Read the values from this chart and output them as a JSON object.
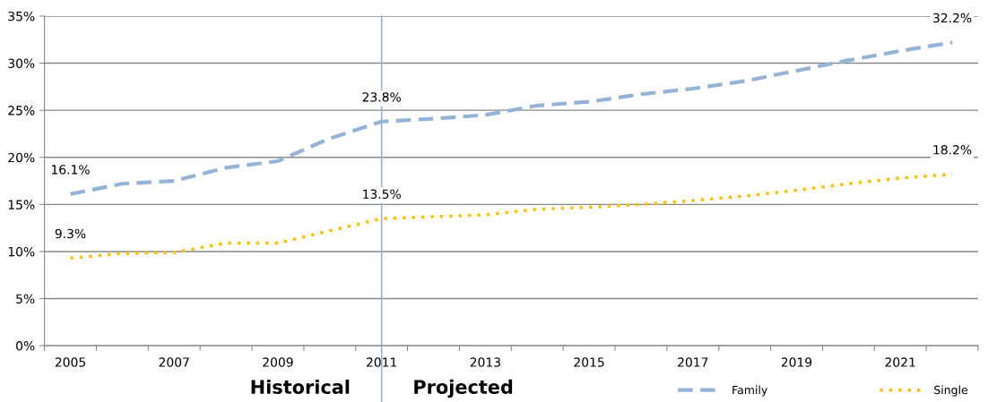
{
  "chart_data": {
    "type": "line",
    "categories": [
      "2005",
      null,
      "2007",
      null,
      "2009",
      null,
      "2011",
      null,
      "2013",
      null,
      "2015",
      null,
      "2017",
      null,
      "2019",
      null,
      "2021",
      null
    ],
    "series": [
      {
        "name": "Family",
        "color": "#95b3d7",
        "line_style": "dashed",
        "values": [
          16.1,
          17.2,
          17.5,
          18.9,
          19.6,
          22.0,
          23.8,
          24.1,
          24.5,
          25.5,
          25.9,
          26.7,
          27.3,
          28.1,
          29.2,
          30.3,
          31.3,
          32.2
        ],
        "value_labels": [
          "16.1%",
          null,
          null,
          null,
          null,
          null,
          "23.8%",
          null,
          null,
          null,
          null,
          null,
          null,
          null,
          null,
          null,
          null,
          "32.2%"
        ]
      },
      {
        "name": "Single",
        "color": "#ffc000",
        "line_style": "dotted",
        "values": [
          9.3,
          9.8,
          9.9,
          10.9,
          10.9,
          12.2,
          13.5,
          13.7,
          13.9,
          14.5,
          14.7,
          15.0,
          15.4,
          15.9,
          16.5,
          17.2,
          17.8,
          18.2
        ],
        "value_labels": [
          "9.3%",
          null,
          null,
          null,
          null,
          null,
          "13.5%",
          null,
          null,
          null,
          null,
          null,
          null,
          null,
          null,
          null,
          null,
          "18.2%"
        ]
      }
    ],
    "ylim": [
      0,
      35
    ],
    "yticks": [
      {
        "value": 0,
        "label": "0%"
      },
      {
        "value": 5,
        "label": "5%"
      },
      {
        "value": 10,
        "label": "10%"
      },
      {
        "value": 15,
        "label": "15%"
      },
      {
        "value": 20,
        "label": "20%"
      },
      {
        "value": 25,
        "label": "25%"
      },
      {
        "value": 30,
        "label": "30%"
      },
      {
        "value": 35,
        "label": "35%"
      }
    ],
    "grid": "y",
    "legend": "bottom right",
    "marker": "none",
    "ref_lines": [
      {
        "axis": "x",
        "value": "2011",
        "color": "#95b3d7"
      }
    ],
    "annotations": [
      "Historical",
      "Projected"
    ]
  }
}
